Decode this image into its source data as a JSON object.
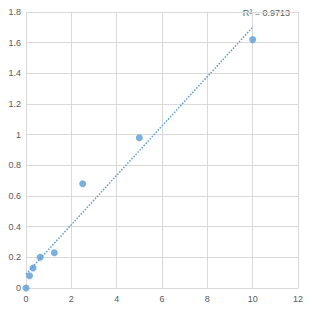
{
  "chart_data": {
    "type": "scatter",
    "x": [
      0,
      0.156,
      0.3125,
      0.625,
      1.25,
      2.5,
      5,
      10
    ],
    "values": [
      0,
      0.08,
      0.13,
      0.2,
      0.23,
      0.68,
      0.98,
      1.62
    ],
    "color": "#5b9bd5",
    "marker": "circle",
    "line_style": "dotted",
    "annotations": [
      "R² = 0.9713"
    ],
    "xlim": [
      0,
      12
    ],
    "xticks": [
      0,
      2,
      4,
      6,
      8,
      10,
      12
    ],
    "ylim": [
      0,
      1.8
    ],
    "yticks": [
      0,
      0.2,
      0.4,
      0.6,
      0.8,
      1,
      1.2,
      1.4,
      1.6,
      1.8
    ],
    "grid": true
  }
}
